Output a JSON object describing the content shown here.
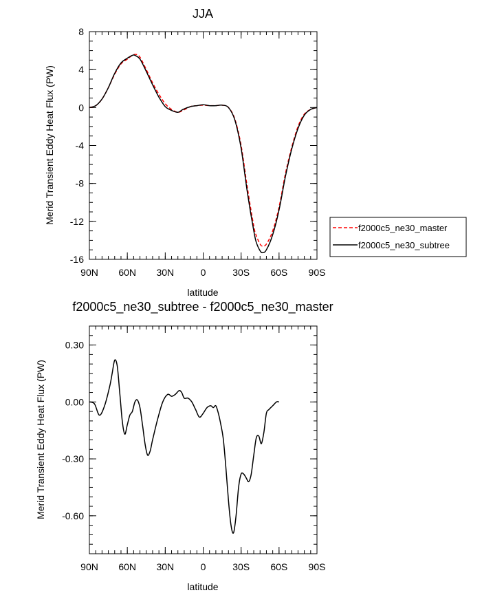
{
  "chart_data": [
    {
      "type": "line",
      "title": "JJA",
      "xlabel": "latitude",
      "ylabel": "Merid Transient Eddy Heat Flux (PW)",
      "xlim": [
        90,
        -90
      ],
      "ylim": [
        -16,
        8
      ],
      "xticks": [
        90,
        60,
        30,
        0,
        -30,
        -60,
        -90
      ],
      "xtick_labels": [
        "90N",
        "60N",
        "30N",
        "0",
        "30S",
        "60S",
        "90S"
      ],
      "yticks": [
        8,
        4,
        0,
        -4,
        -8,
        -12,
        -16
      ],
      "ytick_labels": [
        "8",
        "4",
        "0",
        "-4",
        "-8",
        "-12",
        "-16"
      ],
      "legend_position": "outside-right",
      "series": [
        {
          "name": "f2000c5_ne30_master",
          "color": "#ff0000",
          "dash": "dashed",
          "points": [
            [
              90,
              0
            ],
            [
              85,
              0.2
            ],
            [
              80,
              0.9
            ],
            [
              75,
              2.1
            ],
            [
              70,
              3.5
            ],
            [
              65,
              4.6
            ],
            [
              60,
              5.1
            ],
            [
              56,
              5.5
            ],
            [
              53,
              5.6
            ],
            [
              50,
              5.3
            ],
            [
              45,
              4.0
            ],
            [
              40,
              2.6
            ],
            [
              35,
              1.4
            ],
            [
              30,
              0.4
            ],
            [
              25,
              -0.2
            ],
            [
              20,
              -0.5
            ],
            [
              16,
              -0.3
            ],
            [
              10,
              0.1
            ],
            [
              5,
              0.2
            ],
            [
              0,
              0.25
            ],
            [
              -5,
              0.2
            ],
            [
              -10,
              0.2
            ],
            [
              -15,
              0.25
            ],
            [
              -20,
              0.0
            ],
            [
              -25,
              -1.2
            ],
            [
              -30,
              -4.0
            ],
            [
              -35,
              -8.5
            ],
            [
              -40,
              -12.5
            ],
            [
              -42,
              -13.5
            ],
            [
              -45,
              -14.4
            ],
            [
              -47,
              -14.6
            ],
            [
              -50,
              -14.4
            ],
            [
              -55,
              -13.0
            ],
            [
              -60,
              -10.5
            ],
            [
              -65,
              -7.0
            ],
            [
              -70,
              -4.2
            ],
            [
              -75,
              -2.0
            ],
            [
              -80,
              -0.7
            ],
            [
              -85,
              -0.2
            ],
            [
              -90,
              0
            ]
          ]
        },
        {
          "name": "f2000c5_ne30_subtree",
          "color": "#000000",
          "dash": "solid",
          "points": [
            [
              90,
              0
            ],
            [
              85,
              0.2
            ],
            [
              80,
              0.9
            ],
            [
              75,
              2.1
            ],
            [
              70,
              3.6
            ],
            [
              65,
              4.7
            ],
            [
              60,
              5.2
            ],
            [
              56,
              5.5
            ],
            [
              54,
              5.5
            ],
            [
              50,
              5.1
            ],
            [
              45,
              3.8
            ],
            [
              40,
              2.4
            ],
            [
              35,
              1.1
            ],
            [
              30,
              0.1
            ],
            [
              25,
              -0.3
            ],
            [
              20,
              -0.5
            ],
            [
              16,
              -0.2
            ],
            [
              10,
              0.1
            ],
            [
              5,
              0.2
            ],
            [
              0,
              0.3
            ],
            [
              -5,
              0.2
            ],
            [
              -10,
              0.2
            ],
            [
              -15,
              0.25
            ],
            [
              -20,
              0.0
            ],
            [
              -25,
              -1.3
            ],
            [
              -30,
              -4.3
            ],
            [
              -35,
              -9.0
            ],
            [
              -40,
              -13.0
            ],
            [
              -42,
              -14.2
            ],
            [
              -45,
              -15.1
            ],
            [
              -47,
              -15.3
            ],
            [
              -50,
              -15.0
            ],
            [
              -55,
              -13.4
            ],
            [
              -60,
              -10.8
            ],
            [
              -65,
              -7.3
            ],
            [
              -70,
              -4.4
            ],
            [
              -75,
              -2.2
            ],
            [
              -80,
              -0.8
            ],
            [
              -85,
              -0.2
            ],
            [
              -90,
              0
            ]
          ]
        }
      ]
    },
    {
      "type": "line",
      "title": "f2000c5_ne30_subtree - f2000c5_ne30_master",
      "xlabel": "latitude",
      "ylabel": "Merid Transient Eddy Heat Flux (PW)",
      "xlim": [
        90,
        -90
      ],
      "ylim": [
        -0.8,
        0.4
      ],
      "xticks": [
        90,
        60,
        30,
        0,
        -30,
        -60,
        -90
      ],
      "xtick_labels": [
        "90N",
        "60N",
        "30N",
        "0",
        "30S",
        "60S",
        "90S"
      ],
      "yticks": [
        0.3,
        0,
        -0.3,
        -0.6
      ],
      "ytick_labels": [
        "0.30",
        "0.00",
        "-0.30",
        "-0.60"
      ],
      "series": [
        {
          "color": "#000000",
          "dash": "solid",
          "points": [
            [
              90,
              0
            ],
            [
              86,
              -0.01
            ],
            [
              82,
              -0.07
            ],
            [
              78,
              -0.02
            ],
            [
              74,
              0.08
            ],
            [
              72,
              0.15
            ],
            [
              70,
              0.22
            ],
            [
              68,
              0.19
            ],
            [
              66,
              0.05
            ],
            [
              64,
              -0.1
            ],
            [
              62,
              -0.17
            ],
            [
              60,
              -0.12
            ],
            [
              58,
              -0.07
            ],
            [
              56,
              -0.05
            ],
            [
              54,
              0.0
            ],
            [
              52,
              0.01
            ],
            [
              50,
              -0.03
            ],
            [
              48,
              -0.12
            ],
            [
              46,
              -0.22
            ],
            [
              44,
              -0.28
            ],
            [
              42,
              -0.26
            ],
            [
              40,
              -0.2
            ],
            [
              36,
              -0.09
            ],
            [
              32,
              0.0
            ],
            [
              28,
              0.04
            ],
            [
              25,
              0.03
            ],
            [
              22,
              0.04
            ],
            [
              19,
              0.06
            ],
            [
              17,
              0.05
            ],
            [
              15,
              0.02
            ],
            [
              12,
              0.02
            ],
            [
              9,
              0.0
            ],
            [
              6,
              -0.04
            ],
            [
              3,
              -0.08
            ],
            [
              0,
              -0.06
            ],
            [
              -3,
              -0.03
            ],
            [
              -6,
              -0.02
            ],
            [
              -8,
              -0.03
            ],
            [
              -10,
              -0.02
            ],
            [
              -12,
              -0.06
            ],
            [
              -14,
              -0.12
            ],
            [
              -16,
              -0.2
            ],
            [
              -18,
              -0.35
            ],
            [
              -20,
              -0.52
            ],
            [
              -22,
              -0.65
            ],
            [
              -24,
              -0.69
            ],
            [
              -26,
              -0.6
            ],
            [
              -28,
              -0.45
            ],
            [
              -30,
              -0.38
            ],
            [
              -32,
              -0.38
            ],
            [
              -34,
              -0.4
            ],
            [
              -36,
              -0.42
            ],
            [
              -38,
              -0.38
            ],
            [
              -40,
              -0.28
            ],
            [
              -42,
              -0.19
            ],
            [
              -44,
              -0.18
            ],
            [
              -46,
              -0.22
            ],
            [
              -48,
              -0.16
            ],
            [
              -50,
              -0.06
            ],
            [
              -52,
              -0.04
            ],
            [
              -55,
              -0.02
            ],
            [
              -58,
              0.0
            ],
            [
              -60,
              0.0
            ]
          ]
        }
      ]
    }
  ]
}
